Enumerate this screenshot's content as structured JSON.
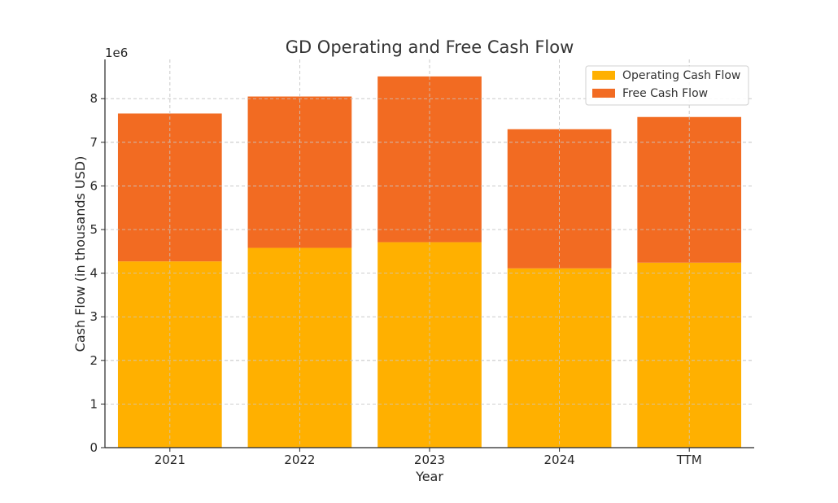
{
  "chart_data": {
    "type": "bar",
    "stacked": true,
    "title": "GD Operating and Free Cash Flow",
    "xlabel": "Year",
    "ylabel": "Cash Flow (in thousands USD)",
    "y_scale_label": "1e6",
    "categories": [
      "2021",
      "2022",
      "2023",
      "2024",
      "TTM"
    ],
    "series": [
      {
        "name": "Operating Cash Flow",
        "color": "#FFB000",
        "values": [
          4270000,
          4580000,
          4710000,
          4110000,
          4240000
        ]
      },
      {
        "name": "Free Cash Flow",
        "color": "#F26B22",
        "values": [
          3390000,
          3470000,
          3800000,
          3190000,
          3340000
        ]
      }
    ],
    "y_ticks": [
      0,
      1000000,
      2000000,
      3000000,
      4000000,
      5000000,
      6000000,
      7000000,
      8000000
    ],
    "y_tick_labels": [
      "0",
      "1",
      "2",
      "3",
      "4",
      "5",
      "6",
      "7",
      "8"
    ],
    "ylim": [
      0,
      8900000
    ],
    "grid": true,
    "legend_position": "top-right"
  }
}
